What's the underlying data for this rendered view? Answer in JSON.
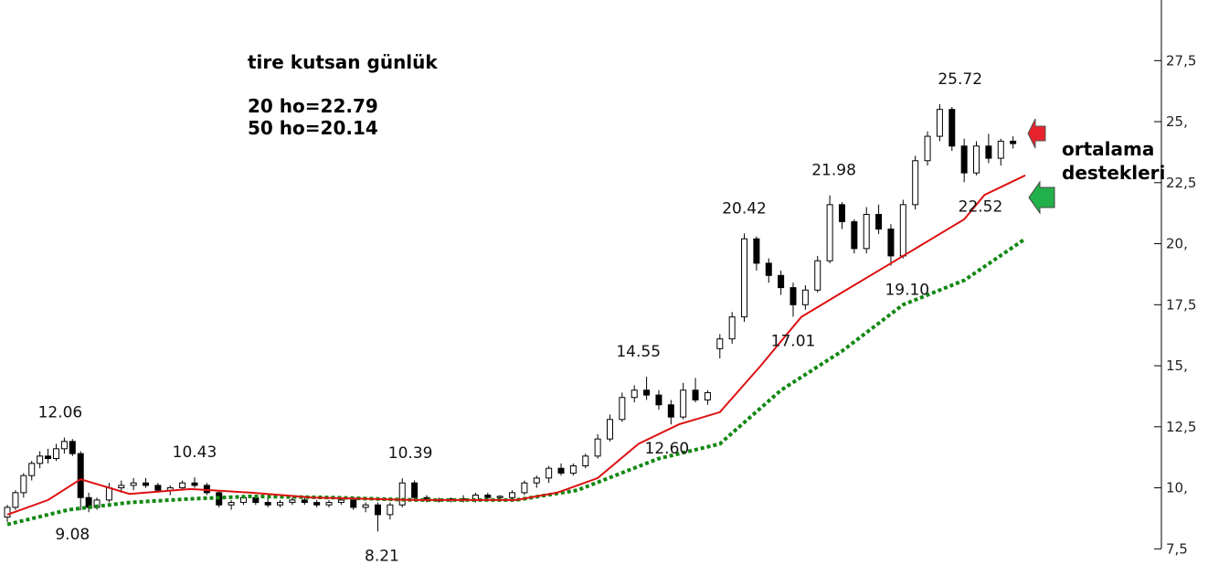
{
  "annotation": {
    "title": "tire kutsan günlük",
    "ma20": "20 ho=22.79",
    "ma50": "50 ho=20.14",
    "callout_line1": "ortalama",
    "callout_line2": "destekleri"
  },
  "colors": {
    "ma20": "#dd1111",
    "ma50": "#118811",
    "arrow_red": "#e8222a",
    "arrow_green": "#22b04a",
    "candle": "#000000"
  },
  "chart_data": {
    "type": "candlestick",
    "y_axis": {
      "position": "right",
      "range": [
        6.5,
        28.0
      ],
      "ticks": [
        7.5,
        10,
        12.5,
        15,
        17.5,
        20,
        22.5,
        25,
        27.5
      ],
      "tick_labels": [
        "7,5",
        "10,",
        "12,5",
        "15,",
        "17,5",
        "20,",
        "22,5",
        "25,",
        "27,5"
      ]
    },
    "grid": false,
    "price_labels": [
      {
        "text": "12.06",
        "x": 13,
        "y": 12.06
      },
      {
        "text": "9.08",
        "x": 16,
        "y": 9.08
      },
      {
        "text": "10.43",
        "x": 46,
        "y": 10.43
      },
      {
        "text": "8.21",
        "x": 92,
        "y": 8.21
      },
      {
        "text": "10.39",
        "x": 99,
        "y": 10.39
      },
      {
        "text": "14.55",
        "x": 155,
        "y": 14.55
      },
      {
        "text": "12.60",
        "x": 162,
        "y": 12.6
      },
      {
        "text": "20.42",
        "x": 181,
        "y": 20.42
      },
      {
        "text": "17.01",
        "x": 193,
        "y": 17.01
      },
      {
        "text": "21.98",
        "x": 203,
        "y": 21.98
      },
      {
        "text": "19.10",
        "x": 221,
        "y": 19.1
      },
      {
        "text": "25.72",
        "x": 234,
        "y": 25.72
      },
      {
        "text": "22.52",
        "x": 239,
        "y": 22.52
      }
    ],
    "ma20_series": [
      [
        0,
        8.9
      ],
      [
        10,
        9.5
      ],
      [
        18,
        10.35
      ],
      [
        30,
        9.75
      ],
      [
        45,
        9.95
      ],
      [
        60,
        9.8
      ],
      [
        75,
        9.6
      ],
      [
        100,
        9.5
      ],
      [
        125,
        9.5
      ],
      [
        135,
        9.8
      ],
      [
        145,
        10.4
      ],
      [
        155,
        11.8
      ],
      [
        165,
        12.6
      ],
      [
        175,
        13.1
      ],
      [
        185,
        15.0
      ],
      [
        195,
        17.0
      ],
      [
        205,
        18.0
      ],
      [
        215,
        19.0
      ],
      [
        225,
        20.0
      ],
      [
        235,
        21.0
      ],
      [
        240,
        22.0
      ],
      [
        250,
        22.8
      ]
    ],
    "ma50_series": [
      [
        0,
        8.5
      ],
      [
        15,
        9.1
      ],
      [
        30,
        9.4
      ],
      [
        45,
        9.55
      ],
      [
        60,
        9.65
      ],
      [
        80,
        9.6
      ],
      [
        100,
        9.5
      ],
      [
        125,
        9.5
      ],
      [
        140,
        9.9
      ],
      [
        160,
        11.2
      ],
      [
        175,
        11.8
      ],
      [
        190,
        14.0
      ],
      [
        205,
        15.6
      ],
      [
        220,
        17.5
      ],
      [
        235,
        18.5
      ],
      [
        250,
        20.2
      ]
    ],
    "candles": [
      [
        0,
        8.8,
        9.3,
        8.6,
        9.2
      ],
      [
        2,
        9.2,
        9.9,
        9.1,
        9.8
      ],
      [
        4,
        9.8,
        10.6,
        9.6,
        10.5
      ],
      [
        6,
        10.5,
        11.1,
        10.3,
        11.0
      ],
      [
        8,
        11.0,
        11.5,
        10.8,
        11.3
      ],
      [
        10,
        11.3,
        11.6,
        11.0,
        11.2
      ],
      [
        12,
        11.2,
        11.8,
        11.1,
        11.6
      ],
      [
        14,
        11.6,
        12.06,
        11.4,
        11.9
      ],
      [
        16,
        11.9,
        12.0,
        11.3,
        11.4
      ],
      [
        18,
        11.4,
        11.5,
        9.08,
        9.6
      ],
      [
        20,
        9.6,
        9.8,
        9.0,
        9.2
      ],
      [
        22,
        9.2,
        9.6,
        9.1,
        9.5
      ],
      [
        25,
        9.5,
        10.2,
        9.4,
        10.0
      ],
      [
        28,
        10.0,
        10.3,
        9.8,
        10.1
      ],
      [
        31,
        10.1,
        10.4,
        9.9,
        10.2
      ],
      [
        34,
        10.2,
        10.4,
        10.0,
        10.1
      ],
      [
        37,
        10.1,
        10.2,
        9.8,
        9.9
      ],
      [
        40,
        9.9,
        10.1,
        9.7,
        10.0
      ],
      [
        43,
        10.0,
        10.3,
        9.9,
        10.2
      ],
      [
        46,
        10.2,
        10.43,
        10.0,
        10.1
      ],
      [
        49,
        10.1,
        10.2,
        9.7,
        9.8
      ],
      [
        52,
        9.8,
        9.9,
        9.2,
        9.3
      ],
      [
        55,
        9.3,
        9.5,
        9.1,
        9.4
      ],
      [
        58,
        9.4,
        9.7,
        9.3,
        9.6
      ],
      [
        61,
        9.6,
        9.7,
        9.3,
        9.4
      ],
      [
        64,
        9.4,
        9.6,
        9.2,
        9.3
      ],
      [
        67,
        9.3,
        9.5,
        9.2,
        9.4
      ],
      [
        70,
        9.4,
        9.6,
        9.3,
        9.5
      ],
      [
        73,
        9.5,
        9.6,
        9.3,
        9.4
      ],
      [
        76,
        9.4,
        9.5,
        9.2,
        9.3
      ],
      [
        79,
        9.3,
        9.5,
        9.2,
        9.4
      ],
      [
        82,
        9.4,
        9.6,
        9.3,
        9.5
      ],
      [
        85,
        9.5,
        9.6,
        9.1,
        9.2
      ],
      [
        88,
        9.2,
        9.4,
        9.0,
        9.3
      ],
      [
        91,
        9.3,
        9.4,
        8.21,
        8.9
      ],
      [
        94,
        8.9,
        9.4,
        8.7,
        9.3
      ],
      [
        97,
        9.3,
        10.39,
        9.2,
        10.2
      ],
      [
        100,
        10.2,
        10.3,
        9.5,
        9.6
      ],
      [
        103,
        9.6,
        9.7,
        9.4,
        9.5
      ],
      [
        106,
        9.5,
        9.6,
        9.4,
        9.5
      ],
      [
        109,
        9.5,
        9.6,
        9.4,
        9.55
      ],
      [
        112,
        9.55,
        9.7,
        9.4,
        9.5
      ],
      [
        115,
        9.5,
        9.8,
        9.4,
        9.7
      ],
      [
        118,
        9.7,
        9.8,
        9.5,
        9.6
      ],
      [
        121,
        9.6,
        9.7,
        9.5,
        9.65
      ],
      [
        124,
        9.6,
        9.9,
        9.5,
        9.8
      ],
      [
        127,
        9.8,
        10.3,
        9.7,
        10.2
      ],
      [
        130,
        10.2,
        10.5,
        10.0,
        10.4
      ],
      [
        133,
        10.4,
        10.9,
        10.2,
        10.8
      ],
      [
        136,
        10.8,
        11.0,
        10.5,
        10.6
      ],
      [
        139,
        10.6,
        11.0,
        10.5,
        10.9
      ],
      [
        142,
        10.9,
        11.4,
        10.8,
        11.3
      ],
      [
        145,
        11.3,
        12.2,
        11.2,
        12.0
      ],
      [
        148,
        12.0,
        13.0,
        11.9,
        12.8
      ],
      [
        151,
        12.8,
        13.9,
        12.7,
        13.7
      ],
      [
        154,
        13.7,
        14.2,
        13.5,
        14.0
      ],
      [
        157,
        14.0,
        14.55,
        13.6,
        13.8
      ],
      [
        160,
        13.8,
        14.0,
        13.2,
        13.4
      ],
      [
        163,
        13.4,
        13.6,
        12.6,
        12.9
      ],
      [
        166,
        12.9,
        14.3,
        12.8,
        14.0
      ],
      [
        169,
        14.0,
        14.5,
        13.5,
        13.6
      ],
      [
        172,
        13.6,
        14.0,
        13.4,
        13.9
      ],
      [
        175,
        15.7,
        16.3,
        15.3,
        16.1
      ],
      [
        178,
        16.1,
        17.2,
        15.9,
        17.0
      ],
      [
        181,
        17.0,
        20.42,
        16.8,
        20.2
      ],
      [
        184,
        20.2,
        20.3,
        18.9,
        19.2
      ],
      [
        187,
        19.2,
        19.4,
        18.4,
        18.7
      ],
      [
        190,
        18.7,
        18.9,
        17.9,
        18.2
      ],
      [
        193,
        18.2,
        18.4,
        17.01,
        17.5
      ],
      [
        196,
        17.5,
        18.3,
        17.3,
        18.1
      ],
      [
        199,
        18.1,
        19.5,
        18.0,
        19.3
      ],
      [
        202,
        19.3,
        21.98,
        19.2,
        21.6
      ],
      [
        205,
        21.6,
        21.7,
        20.6,
        20.9
      ],
      [
        208,
        20.9,
        21.0,
        19.6,
        19.8
      ],
      [
        211,
        19.8,
        21.5,
        19.6,
        21.2
      ],
      [
        214,
        21.2,
        21.6,
        20.4,
        20.6
      ],
      [
        217,
        20.6,
        20.8,
        19.1,
        19.5
      ],
      [
        220,
        19.5,
        21.8,
        19.4,
        21.6
      ],
      [
        223,
        21.6,
        23.6,
        21.4,
        23.4
      ],
      [
        226,
        23.4,
        24.6,
        23.2,
        24.4
      ],
      [
        229,
        24.4,
        25.72,
        24.2,
        25.5
      ],
      [
        232,
        25.5,
        25.6,
        23.8,
        24.0
      ],
      [
        235,
        24.0,
        24.3,
        22.52,
        22.9
      ],
      [
        238,
        22.9,
        24.2,
        22.8,
        24.0
      ],
      [
        241,
        24.0,
        24.5,
        23.3,
        23.5
      ],
      [
        244,
        23.5,
        24.3,
        23.2,
        24.2
      ],
      [
        247,
        24.2,
        24.4,
        23.9,
        24.1
      ]
    ]
  }
}
